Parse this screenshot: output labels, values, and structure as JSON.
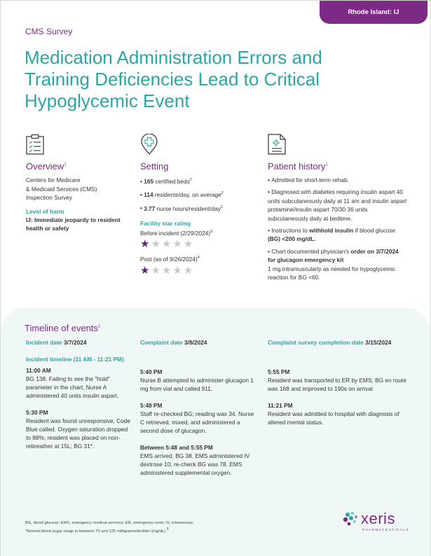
{
  "badge": "Rhode Island: IJ",
  "kicker": "CMS Survey",
  "title": "Medication Administration Errors and Training Deficiencies Lead to Critical Hypoglycemic Event",
  "overview": {
    "heading": "Overview",
    "heading_sup": "1",
    "line1": "Centers for Medicare",
    "line2": "& Medicaid Services (CMS)",
    "line3": "Inspection Survey",
    "level_label": "Level of harm",
    "level_value": "IJ: Immediate jeopardy to resident health or safety",
    "icon": "checklist-icon"
  },
  "setting": {
    "heading": "Setting",
    "icon": "medical-location-pin-icon",
    "beds_value": "165",
    "beds_text": " certified beds",
    "beds_sup": "2",
    "residents_value": "114",
    "residents_text": " residents/day, on average",
    "residents_sup": "2",
    "hours_value": "3.77",
    "hours_text": " nurse hours/resident/day",
    "hours_sup": "2",
    "rating_label": "Facility star rating",
    "before_label": "Before incident (2/29/2024)",
    "before_sup": "3",
    "before_stars": 1,
    "post_label": "Post (as of 9/26/2024)",
    "post_sup": "4",
    "post_stars": 1,
    "max_stars": 5
  },
  "patient": {
    "heading": "Patient history",
    "heading_sup": "1",
    "icon": "medical-chart-icon",
    "b1": "Admitted for short-term rehab.",
    "b2": "Diagnosed with diabetes requiring insulin aspart 40 units subcutaneously daily at 11 am and insulin aspart protamine/insulin aspart 70/30 36 units subcutaneously daily at bedtime.",
    "b3_pre": "Instructions to ",
    "b3_bold": "withhold insulin",
    "b3_mid": " if blood glucose ",
    "b3_bold2": "(BG) <200 mg/dL.",
    "b4_pre": "Chart documented physician's ",
    "b4_bold": "order on 3/7/2024 for glucagon emergency kit",
    "b4_post": "1 mg intramuscularly as needed for hypoglycemic reaction for BG <60."
  },
  "timeline": {
    "heading": "Timeline of events",
    "heading_sup": "1",
    "c1": {
      "date_label": "Incident date ",
      "date_value": "3/7/2024",
      "sub": "Incident timeline (11 AM - 11:21 PM)",
      "e1_time": "11:00 AM",
      "e1_text": "BG 138. Failing to see the \"hold\" parameter in the chart, Nurse A administered 40 units insulin aspart.",
      "e2_time": "5:30 PM",
      "e2_text": "Resident was found unresponsive, Code Blue called. Oxygen saturation dropped to 88%; resident was placed on non-rebreather at 15L; BG 31*."
    },
    "c2": {
      "date_label": "Complaint date ",
      "date_value": "3/8/2024",
      "e1_time": "5:40 PM",
      "e1_text": "Nurse B attempted to administer glucagon 1 mg from vial and called 911.",
      "e2_time": "5:48 PM",
      "e2_text": "Staff re-checked BG; reading was 34. Nurse C retrieved, mixed, and administered a second dose of glucagon.",
      "e3_time": "Between 5:48 and 5:55 PM",
      "e3_text": "EMS arrived. BG 38. EMS administered IV dextrose 10; re-check BG was 78. EMS administered supplemental oxygen."
    },
    "c3": {
      "date_label": "Complaint survey completion date ",
      "date_value": "3/15/2024",
      "e1_time": "5:55 PM",
      "e1_text": "Resident was transported to ER by EMS; BG en route was 168 and improved to 190s on arrival.",
      "e2_time": "11:21 PM",
      "e2_text": "Resident was admitted to hospital with diagnosis of altered mental status."
    }
  },
  "footnote1": "BG, blood glucose; EMS, emergency medical services; ER, emergency room; IV, intravenous.",
  "footnote2": "*Normal blood sugar range is between 70 and 125 milligrams/deciliter (mg/dL).",
  "footnote2_sup": "5",
  "logo": {
    "text": "xeris",
    "sub": "PHARMACEUTICALS",
    "icon": "xeris-logo-icon"
  },
  "colors": {
    "purple": "#7c2a86",
    "teal": "#2aa6a4",
    "timeline_bg": "#f0f7f7"
  }
}
